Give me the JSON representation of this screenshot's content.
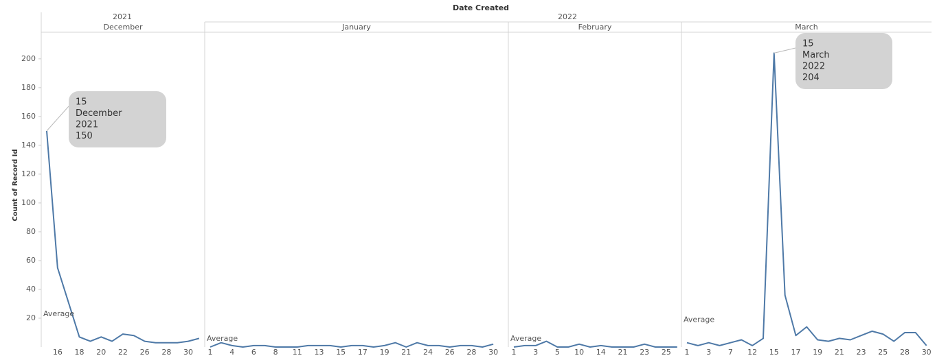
{
  "header": {
    "title": "Date Created",
    "years": [
      "2021",
      "2022"
    ]
  },
  "chart_data": [
    {
      "type": "line",
      "title": "December",
      "ylabel": "Count of Record Id",
      "ylim": [
        0,
        218
      ],
      "yticks": [
        20,
        40,
        60,
        80,
        100,
        120,
        140,
        160,
        180,
        200
      ],
      "categories": [
        null,
        "16",
        null,
        "18",
        null,
        "20",
        null,
        "22",
        null,
        "26",
        null,
        "28",
        null,
        "30",
        null
      ],
      "values": [
        150,
        55,
        31,
        7,
        4,
        7,
        4,
        9,
        8,
        4,
        3,
        3,
        3,
        4,
        6
      ],
      "color": "#4e79a7",
      "average": 19,
      "average_label": "Average",
      "annotation": [
        "15",
        "December",
        "2021",
        "150"
      ]
    },
    {
      "type": "line",
      "title": "January",
      "ylim": [
        0,
        218
      ],
      "categories": [
        "1",
        null,
        "4",
        null,
        "6",
        null,
        "8",
        null,
        "11",
        null,
        "13",
        null,
        "15",
        null,
        "17",
        null,
        "19",
        null,
        "21",
        null,
        "24",
        null,
        "26",
        null,
        "28",
        null,
        "30"
      ],
      "values": [
        0,
        3,
        1,
        0,
        1,
        1,
        0,
        0,
        0,
        1,
        1,
        1,
        0,
        1,
        1,
        0,
        1,
        3,
        0,
        3,
        1,
        1,
        0,
        1,
        1,
        0,
        2
      ],
      "color": "#4e79a7",
      "average": 2,
      "average_label": "Average"
    },
    {
      "type": "line",
      "title": "February",
      "ylim": [
        0,
        218
      ],
      "categories": [
        "1",
        null,
        "3",
        null,
        "5",
        null,
        "10",
        null,
        "14",
        null,
        "21",
        null,
        "23",
        null,
        "25",
        null
      ],
      "values": [
        0,
        1,
        1,
        4,
        0,
        0,
        2,
        0,
        1,
        0,
        0,
        0,
        2,
        0,
        0,
        0
      ],
      "color": "#4e79a7",
      "average": 2,
      "average_label": "Average"
    },
    {
      "type": "line",
      "title": "March",
      "ylim": [
        0,
        218
      ],
      "categories": [
        "1",
        null,
        "3",
        null,
        "7",
        null,
        "12",
        null,
        "15",
        null,
        "17",
        null,
        "19",
        null,
        "21",
        null,
        "23",
        null,
        "25",
        null,
        "28",
        null,
        "30"
      ],
      "values": [
        3,
        1,
        3,
        1,
        3,
        5,
        1,
        6,
        204,
        36,
        8,
        14,
        5,
        4,
        6,
        5,
        8,
        11,
        9,
        4,
        10,
        10,
        1
      ],
      "color": "#4e79a7",
      "average": 15,
      "average_label": "Average",
      "annotation": [
        "15",
        "March",
        "2022",
        "204"
      ]
    }
  ]
}
